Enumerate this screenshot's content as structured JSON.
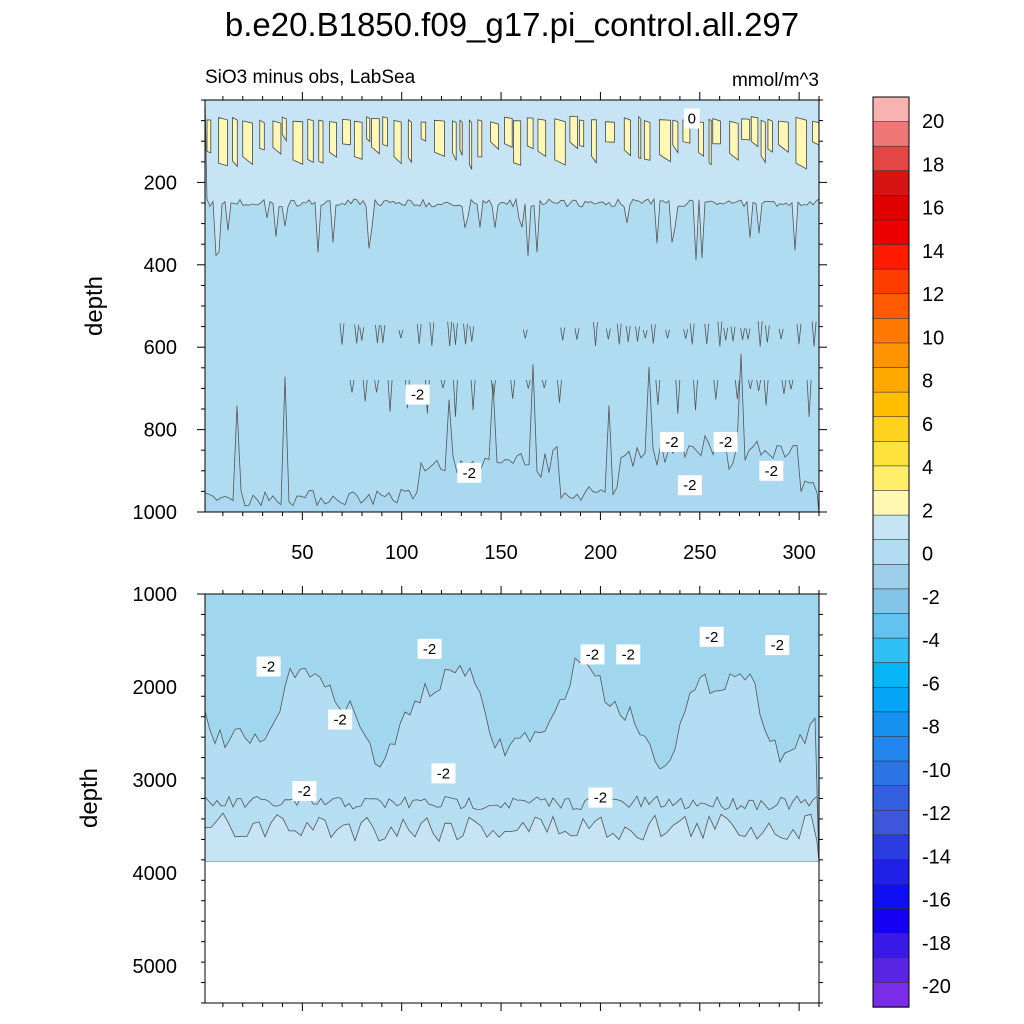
{
  "figure": {
    "title": "b.e20.B1850.f09_g17.pi_control.all.297",
    "subtitle_left": "SiO3 minus obs, LabSea",
    "subtitle_right": "mmol/m^3"
  },
  "colors": {
    "pos0_2": "#fff7b3",
    "neg0_2": "#c6e4f4",
    "neg2_4": "#b0dcf2",
    "neg2_4_deep": "#a1d6ef"
  },
  "chart_data": [
    {
      "type": "contour",
      "panel": "upper",
      "title": "SiO3 minus obs, LabSea",
      "units": "mmol/m^3",
      "xlabel": "",
      "ylabel": "depth",
      "x_range": [
        1,
        310
      ],
      "y_range": [
        1000,
        0
      ],
      "x_ticks": [
        50,
        100,
        150,
        200,
        250,
        300
      ],
      "y_ticks": [
        200,
        400,
        600,
        800,
        1000
      ],
      "contour_labels": [
        {
          "text": "0",
          "x": 246,
          "y": 45
        },
        {
          "text": "-2",
          "x": 108,
          "y": 715
        },
        {
          "text": "-2",
          "x": 236,
          "y": 830
        },
        {
          "text": "-2",
          "x": 263,
          "y": 830
        },
        {
          "text": "-2",
          "x": 286,
          "y": 900
        },
        {
          "text": "-2",
          "x": 134,
          "y": 905
        },
        {
          "text": "-2",
          "x": 245,
          "y": 935
        }
      ]
    },
    {
      "type": "contour",
      "panel": "lower",
      "xlabel": "",
      "ylabel": "depth",
      "x_range": [
        1,
        310
      ],
      "y_range": [
        5400,
        1000
      ],
      "y_ticks": [
        1000,
        2000,
        3000,
        4000,
        5000
      ],
      "data_max_depth": 3875,
      "contour_labels": [
        {
          "text": "-2",
          "x": 33,
          "y": 1780
        },
        {
          "text": "-2",
          "x": 114,
          "y": 1590
        },
        {
          "text": "-2",
          "x": 69,
          "y": 2350
        },
        {
          "text": "-2",
          "x": 196,
          "y": 1650
        },
        {
          "text": "-2",
          "x": 214,
          "y": 1650
        },
        {
          "text": "-2",
          "x": 256,
          "y": 1460
        },
        {
          "text": "-2",
          "x": 289,
          "y": 1550
        },
        {
          "text": "-2",
          "x": 121,
          "y": 2930
        },
        {
          "text": "-2",
          "x": 51,
          "y": 3120
        },
        {
          "text": "-2",
          "x": 200,
          "y": 3190
        }
      ]
    }
  ],
  "colorbar": {
    "labels": [
      "20",
      "18",
      "16",
      "14",
      "12",
      "10",
      "8",
      "6",
      "4",
      "2",
      "0",
      "-2",
      "-4",
      "-6",
      "-8",
      "-10",
      "-12",
      "-14",
      "-16",
      "-18",
      "-20"
    ],
    "colors": [
      "#f8b2b2",
      "#ef7777",
      "#e54545",
      "#d61414",
      "#e00000",
      "#ee0000",
      "#ff1a00",
      "#ff3c00",
      "#ff5a00",
      "#ff7800",
      "#ff9400",
      "#ffa800",
      "#ffbe00",
      "#ffd21f",
      "#ffe23c",
      "#ffee6a",
      "#fff8b2",
      "#c6e4f4",
      "#b1dcf2",
      "#9ecfea",
      "#83c4e8",
      "#62c2f0",
      "#2fbff3",
      "#06b6f8",
      "#05a6f8",
      "#1592f0",
      "#2385ee",
      "#2c74e6",
      "#3260e0",
      "#3e56dc",
      "#2b3de0",
      "#2020e8",
      "#0f0ff6",
      "#1400f2",
      "#3a18e8",
      "#5a24e4",
      "#7a2ce8"
    ]
  }
}
